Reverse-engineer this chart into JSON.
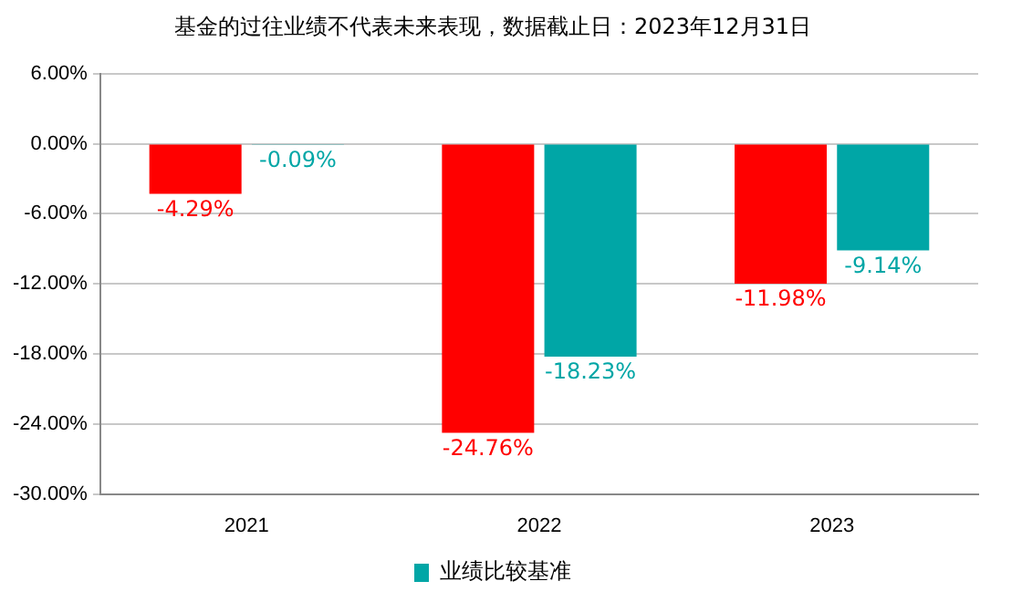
{
  "chart_data": {
    "type": "bar",
    "title": "基金的过往业绩不代表未来表现，数据截止日：2023年12月31日",
    "categories": [
      "2021",
      "2022",
      "2023"
    ],
    "series": [
      {
        "color": "#ff0000",
        "values": [
          -4.29,
          -24.76,
          -11.98
        ],
        "value_labels": [
          "-4.29%",
          "-24.76%",
          "-11.98%"
        ]
      },
      {
        "name": "业绩比较基准",
        "color": "#00a6a6",
        "values": [
          -0.09,
          -18.23,
          -9.14
        ],
        "value_labels": [
          "-0.09%",
          "-18.23%",
          "-9.14%"
        ]
      }
    ],
    "ylim": [
      -30,
      6
    ],
    "yticks": [
      {
        "value": -30,
        "label": "-30.00%"
      },
      {
        "value": -24,
        "label": "-24.00%"
      },
      {
        "value": -18,
        "label": "-18.00%"
      },
      {
        "value": -12,
        "label": "-12.00%"
      },
      {
        "value": -6,
        "label": "-6.00%"
      },
      {
        "value": 0,
        "label": "0.00%"
      },
      {
        "value": 6,
        "label": "6.00%"
      }
    ],
    "grid": "y",
    "legend": "bottom"
  }
}
